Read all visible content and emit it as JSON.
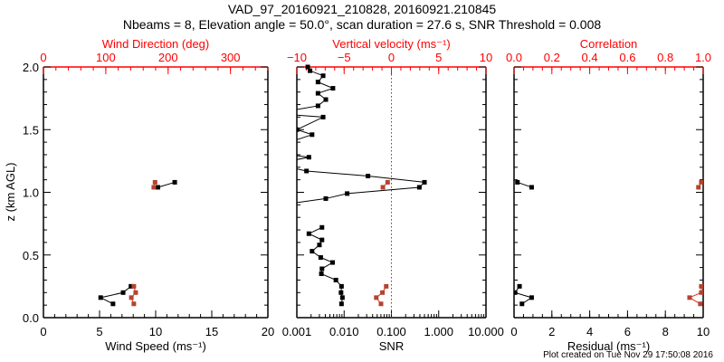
{
  "header": {
    "title": "VAD_97_20160921_210828, 20160921.210845",
    "subtitle": "Nbeams = 8, Elevation angle = 50.0°, scan duration = 27.6 s, SNR Threshold = 0.008"
  },
  "footer": "Plot created on Tue Nov 29 17:50:08 2016",
  "colors": {
    "axis_black": "#000000",
    "axis_red": "#ff0000",
    "red_marker": "#b5432f",
    "red_line": "#e0301e"
  },
  "chart_data": [
    {
      "type": "line",
      "ylabel": "z (km AGL)",
      "ylim": [
        0,
        2
      ],
      "yticks": [
        "0.0",
        "0.5",
        "1.0",
        "1.5",
        "2.0"
      ],
      "bottom_axis": {
        "label": "Wind Speed (ms⁻¹)",
        "range": [
          0,
          20
        ],
        "log": false,
        "ticks": [
          "0",
          "5",
          "10",
          "15",
          "20"
        ],
        "tick_values": [
          0,
          5,
          10,
          15,
          20
        ],
        "minor_step": 1
      },
      "top_axis": {
        "label": "Wind Direction (deg)",
        "range": [
          0,
          360
        ],
        "log": false,
        "ticks": [
          "0",
          "100",
          "200",
          "300"
        ],
        "tick_values": [
          0,
          100,
          200,
          300
        ],
        "minor_step": 20
      },
      "series": [
        {
          "name": "Wind Speed",
          "axis": "bottom",
          "color": "black",
          "segments": [
            [
              [
                6.2,
                0.11
              ],
              [
                5.1,
                0.16
              ],
              [
                7.1,
                0.2
              ],
              [
                7.8,
                0.25
              ]
            ],
            [
              [
                10.2,
                1.04
              ],
              [
                11.7,
                1.08
              ]
            ]
          ]
        },
        {
          "name": "Wind Direction",
          "axis": "top",
          "color": "red",
          "segments": [
            [
              [
                145,
                0.11
              ],
              [
                141,
                0.16
              ],
              [
                148,
                0.2
              ],
              [
                145,
                0.25
              ]
            ],
            [
              [
                177,
                1.04
              ],
              [
                179,
                1.08
              ]
            ]
          ]
        }
      ]
    },
    {
      "type": "line",
      "ylim": [
        0,
        2
      ],
      "bottom_axis": {
        "label": "SNR",
        "range": [
          0.001,
          10
        ],
        "log": true,
        "ticks": [
          "0.001",
          "0.010",
          "0.100",
          "1.000",
          "10.000"
        ],
        "tick_values": [
          0.001,
          0.01,
          0.1,
          1,
          10
        ]
      },
      "top_axis": {
        "label": "Vertical velocity (ms⁻¹)",
        "range": [
          -10,
          10
        ],
        "log": false,
        "ticks": [
          "−10",
          "−5",
          "0",
          "5",
          "10"
        ],
        "tick_values": [
          -10,
          -5,
          0,
          5,
          10
        ],
        "minor_step": 1
      },
      "reference_line": {
        "axis": "top",
        "value": 0,
        "style": "dotted",
        "color": "red"
      },
      "series": [
        {
          "name": "SNR",
          "axis": "bottom",
          "color": "black",
          "segments": [
            [
              [
                0.0017,
                2.0
              ],
              [
                0.0019,
                1.97
              ],
              [
                0.0036,
                1.93
              ],
              [
                0.0028,
                1.88
              ],
              [
                0.0058,
                1.83
              ],
              [
                0.0028,
                1.79
              ],
              [
                0.0041,
                1.74
              ],
              [
                0.0028,
                1.69
              ],
              [
                0.0007,
                1.65
              ],
              [
                0.0007,
                1.62
              ],
              [
                0.0036,
                1.6
              ],
              [
                0.001,
                1.5
              ],
              [
                0.0021,
                1.46
              ],
              [
                0.0007,
                1.4
              ],
              [
                0.0007,
                1.3
              ],
              [
                0.0018,
                1.28
              ],
              [
                0.0007,
                1.25
              ],
              [
                0.0007,
                1.2
              ],
              [
                0.0016,
                1.17
              ],
              [
                0.032,
                1.13
              ],
              [
                0.5,
                1.08
              ],
              [
                0.39,
                1.04
              ],
              [
                0.0116,
                0.99
              ],
              [
                0.0041,
                0.95
              ],
              [
                0.0007,
                0.91
              ]
            ],
            [
              [
                0.0034,
                0.72
              ],
              [
                0.0018,
                0.67
              ],
              [
                0.0034,
                0.62
              ],
              [
                0.003,
                0.58
              ],
              [
                0.0021,
                0.53
              ],
              [
                0.0032,
                0.48
              ],
              [
                0.0057,
                0.44
              ],
              [
                0.0034,
                0.39
              ],
              [
                0.0033,
                0.35
              ],
              [
                0.0067,
                0.3
              ],
              [
                0.0088,
                0.25
              ],
              [
                0.0086,
                0.2
              ],
              [
                0.0092,
                0.16
              ],
              [
                0.0088,
                0.11
              ]
            ]
          ]
        },
        {
          "name": "Vertical velocity",
          "axis": "top",
          "color": "red",
          "segments": [
            [
              [
                -0.4,
                1.08
              ],
              [
                -0.9,
                1.04
              ]
            ],
            [
              [
                -0.55,
                0.25
              ],
              [
                -0.95,
                0.2
              ],
              [
                -1.6,
                0.16
              ],
              [
                -1.1,
                0.11
              ]
            ]
          ]
        }
      ]
    },
    {
      "type": "line",
      "ylim": [
        0,
        2
      ],
      "bottom_axis": {
        "label": "Residual (ms⁻¹)",
        "range": [
          0,
          10
        ],
        "log": false,
        "ticks": [
          "0",
          "2",
          "4",
          "6",
          "8",
          "10"
        ],
        "tick_values": [
          0,
          2,
          4,
          6,
          8,
          10
        ],
        "minor_step": 0.5
      },
      "top_axis": {
        "label": "Correlation",
        "range": [
          0,
          1
        ],
        "log": false,
        "ticks": [
          "0.0",
          "0.2",
          "0.4",
          "0.6",
          "0.8",
          "1.0"
        ],
        "tick_values": [
          0,
          0.2,
          0.4,
          0.6,
          0.8,
          1.0
        ],
        "minor_step": 0.05
      },
      "series": [
        {
          "name": "Residual",
          "axis": "bottom",
          "color": "black",
          "segments": [
            [
              [
                0.18,
                1.08
              ],
              [
                0.93,
                1.04
              ]
            ],
            [
              [
                0.29,
                0.25
              ],
              [
                0.05,
                0.2
              ],
              [
                0.93,
                0.16
              ],
              [
                0.42,
                0.11
              ]
            ]
          ]
        },
        {
          "name": "Correlation",
          "axis": "top",
          "color": "red",
          "segments": [
            [
              [
                0.99,
                1.08
              ],
              [
                0.975,
                1.04
              ]
            ],
            [
              [
                0.99,
                0.25
              ],
              [
                0.99,
                0.2
              ],
              [
                0.928,
                0.16
              ],
              [
                0.985,
                0.11
              ]
            ]
          ]
        }
      ]
    }
  ]
}
